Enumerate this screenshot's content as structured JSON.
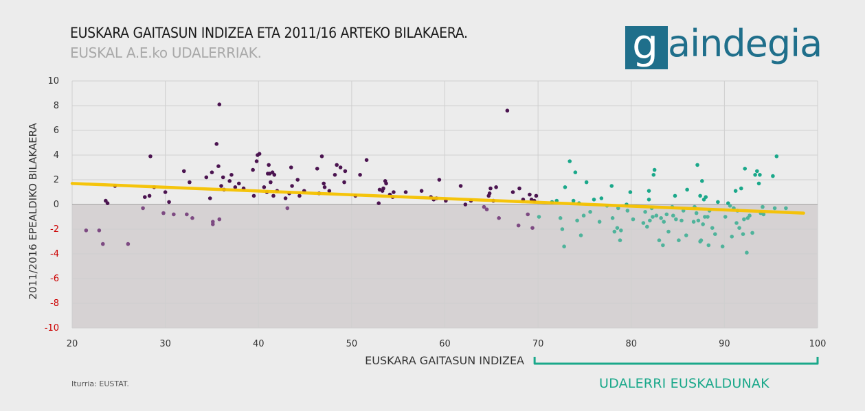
{
  "header": {
    "title": "EUSKARA GAITASUN INDIZEA ETA 2011/16 ARTEKO BILAKAERA.",
    "subtitle": "EUSKAL A.E.ko UDALERRIAK."
  },
  "logo": {
    "letter": "g",
    "rest": "aindegia",
    "color": "#1f6f8b"
  },
  "footer": {
    "source": "Iturria: EUSTAT.",
    "highlight_label": "UDALERRI EUSKALDUNAK"
  },
  "colors": {
    "purple_points": "#4b1450",
    "purple_light_points": "#7d4a82",
    "teal_points": "#1aa88a",
    "teal_light_points": "#4fb39b",
    "trend": "#f6c200",
    "negative_zone": "#d6d2d3",
    "background": "#ececec",
    "negative_tick": "#cc0000"
  },
  "chart_data": {
    "type": "scatter",
    "title": "EUSKARA GAITASUN INDIZEA ETA 2011/16 ARTEKO BILAKAERA.",
    "xlabel": "EUSKARA GAITASUN INDIZEA",
    "ylabel": "2011/2016 EPEALDIKO BILAKAERA",
    "xlim": [
      20,
      100
    ],
    "ylim": [
      -10,
      10
    ],
    "xticks": [
      20,
      30,
      40,
      50,
      60,
      70,
      80,
      90,
      100
    ],
    "yticks": [
      10,
      8,
      6,
      4,
      2,
      0,
      -2,
      -4,
      -6,
      -8,
      -10
    ],
    "grid": true,
    "negative_zone": true,
    "highlight_range": [
      70,
      100
    ],
    "trendline": {
      "x": [
        20,
        98.5
      ],
      "y": [
        1.7,
        -0.7
      ]
    },
    "points": [
      [
        21.5,
        -2.1
      ],
      [
        22.9,
        -2.1
      ],
      [
        23.3,
        -3.2
      ],
      [
        23.6,
        0.3
      ],
      [
        23.8,
        0.1
      ],
      [
        24.6,
        1.5
      ],
      [
        26.0,
        -3.2
      ],
      [
        27.6,
        -0.3
      ],
      [
        27.8,
        0.6
      ],
      [
        28.3,
        0.7
      ],
      [
        28.4,
        3.9
      ],
      [
        28.8,
        1.4
      ],
      [
        29.8,
        -0.7
      ],
      [
        30.0,
        1.0
      ],
      [
        30.4,
        0.2
      ],
      [
        30.9,
        -0.8
      ],
      [
        32.0,
        2.7
      ],
      [
        32.3,
        -0.8
      ],
      [
        32.6,
        1.8
      ],
      [
        32.9,
        -1.1
      ],
      [
        34.4,
        2.2
      ],
      [
        34.8,
        0.5
      ],
      [
        35.0,
        2.6
      ],
      [
        35.1,
        -1.6
      ],
      [
        35.1,
        -1.4
      ],
      [
        35.5,
        4.9
      ],
      [
        35.7,
        3.1
      ],
      [
        35.8,
        -1.2
      ],
      [
        35.8,
        8.1
      ],
      [
        36.0,
        1.5
      ],
      [
        36.2,
        2.2
      ],
      [
        36.3,
        1.2
      ],
      [
        36.9,
        1.9
      ],
      [
        37.1,
        2.4
      ],
      [
        37.5,
        1.4
      ],
      [
        37.9,
        1.7
      ],
      [
        38.4,
        1.3
      ],
      [
        39.4,
        2.8
      ],
      [
        39.5,
        0.7
      ],
      [
        39.8,
        3.5
      ],
      [
        39.9,
        4.0
      ],
      [
        40.1,
        4.1
      ],
      [
        40.6,
        1.4
      ],
      [
        40.9,
        1.0
      ],
      [
        41.0,
        2.5
      ],
      [
        41.1,
        3.2
      ],
      [
        41.2,
        2.5
      ],
      [
        41.3,
        1.8
      ],
      [
        41.5,
        2.6
      ],
      [
        41.6,
        0.7
      ],
      [
        41.7,
        2.4
      ],
      [
        42.0,
        1.1
      ],
      [
        42.9,
        0.5
      ],
      [
        43.1,
        -0.3
      ],
      [
        43.3,
        0.9
      ],
      [
        43.5,
        3.0
      ],
      [
        43.6,
        1.5
      ],
      [
        44.2,
        2.0
      ],
      [
        44.4,
        0.7
      ],
      [
        44.9,
        1.1
      ],
      [
        46.3,
        2.9
      ],
      [
        46.5,
        0.9
      ],
      [
        46.8,
        3.9
      ],
      [
        47.0,
        1.7
      ],
      [
        47.1,
        1.4
      ],
      [
        47.6,
        1.1
      ],
      [
        48.2,
        2.4
      ],
      [
        48.4,
        3.2
      ],
      [
        48.8,
        3.0
      ],
      [
        49.2,
        1.8
      ],
      [
        49.3,
        2.7
      ],
      [
        50.4,
        0.7
      ],
      [
        50.9,
        2.4
      ],
      [
        51.6,
        3.6
      ],
      [
        52.9,
        0.1
      ],
      [
        53.0,
        1.2
      ],
      [
        53.3,
        1.1
      ],
      [
        53.4,
        1.3
      ],
      [
        53.6,
        1.9
      ],
      [
        53.7,
        1.7
      ],
      [
        54.1,
        0.8
      ],
      [
        54.4,
        0.6
      ],
      [
        54.5,
        1.0
      ],
      [
        55.8,
        1.0
      ],
      [
        57.5,
        1.1
      ],
      [
        58.5,
        0.6
      ],
      [
        58.8,
        0.4
      ],
      [
        59.1,
        0.5
      ],
      [
        59.4,
        2.0
      ],
      [
        60.1,
        0.3
      ],
      [
        61.7,
        1.5
      ],
      [
        62.2,
        0.0
      ],
      [
        62.8,
        0.3
      ],
      [
        64.2,
        -0.2
      ],
      [
        64.5,
        -0.4
      ],
      [
        64.7,
        0.7
      ],
      [
        64.8,
        0.9
      ],
      [
        64.9,
        1.3
      ],
      [
        65.2,
        0.3
      ],
      [
        65.5,
        1.4
      ],
      [
        65.8,
        -1.1
      ],
      [
        66.7,
        7.6
      ],
      [
        67.3,
        1.0
      ],
      [
        67.9,
        -1.7
      ],
      [
        68.0,
        1.3
      ],
      [
        68.4,
        0.4
      ],
      [
        68.9,
        -0.8
      ],
      [
        69.1,
        0.8
      ],
      [
        69.3,
        0.4
      ],
      [
        69.6,
        0.3
      ],
      [
        69.4,
        -1.9
      ],
      [
        69.8,
        0.7
      ],
      [
        70.1,
        -1.0
      ],
      [
        71.5,
        0.2
      ],
      [
        72.0,
        0.3
      ],
      [
        72.4,
        -1.1
      ],
      [
        72.6,
        -2.0
      ],
      [
        72.8,
        -3.4
      ],
      [
        72.9,
        1.4
      ],
      [
        73.4,
        3.5
      ],
      [
        73.8,
        0.3
      ],
      [
        74.0,
        2.6
      ],
      [
        74.2,
        -1.3
      ],
      [
        74.4,
        0.1
      ],
      [
        74.6,
        -2.5
      ],
      [
        74.9,
        -0.9
      ],
      [
        75.2,
        1.8
      ],
      [
        75.6,
        -0.6
      ],
      [
        76.0,
        0.4
      ],
      [
        76.6,
        -1.4
      ],
      [
        76.8,
        0.5
      ],
      [
        77.4,
        -0.1
      ],
      [
        77.9,
        1.5
      ],
      [
        78.0,
        -1.1
      ],
      [
        78.2,
        -2.2
      ],
      [
        78.5,
        -1.9
      ],
      [
        78.6,
        -0.3
      ],
      [
        78.8,
        -2.9
      ],
      [
        78.9,
        -2.1
      ],
      [
        79.5,
        0.0
      ],
      [
        79.6,
        -0.5
      ],
      [
        79.9,
        1.0
      ],
      [
        80.2,
        -1.2
      ],
      [
        81.3,
        -1.5
      ],
      [
        81.5,
        -0.6
      ],
      [
        81.7,
        -1.8
      ],
      [
        81.9,
        0.4
      ],
      [
        81.9,
        1.1
      ],
      [
        82.0,
        -1.3
      ],
      [
        82.2,
        -0.3
      ],
      [
        82.3,
        -1.0
      ],
      [
        82.4,
        2.4
      ],
      [
        82.5,
        2.8
      ],
      [
        82.7,
        -0.9
      ],
      [
        83.0,
        -2.9
      ],
      [
        83.2,
        -1.1
      ],
      [
        83.4,
        -3.3
      ],
      [
        83.5,
        -1.4
      ],
      [
        83.8,
        -0.8
      ],
      [
        84.0,
        -2.2
      ],
      [
        84.4,
        -0.2
      ],
      [
        84.5,
        -0.9
      ],
      [
        84.7,
        0.7
      ],
      [
        84.8,
        -1.2
      ],
      [
        85.1,
        -2.9
      ],
      [
        85.4,
        -1.3
      ],
      [
        85.6,
        -0.5
      ],
      [
        85.9,
        -2.5
      ],
      [
        86.0,
        1.2
      ],
      [
        86.7,
        -1.4
      ],
      [
        86.8,
        -0.2
      ],
      [
        87.0,
        -0.7
      ],
      [
        87.1,
        3.2
      ],
      [
        87.2,
        -1.3
      ],
      [
        87.4,
        -3.0
      ],
      [
        87.4,
        0.7
      ],
      [
        87.5,
        -2.9
      ],
      [
        87.6,
        1.9
      ],
      [
        87.7,
        -1.6
      ],
      [
        87.8,
        0.4
      ],
      [
        87.9,
        -1.0
      ],
      [
        88.0,
        0.6
      ],
      [
        88.2,
        -1.0
      ],
      [
        88.3,
        -3.3
      ],
      [
        88.4,
        -0.5
      ],
      [
        88.7,
        -1.9
      ],
      [
        89.0,
        -2.4
      ],
      [
        89.3,
        0.2
      ],
      [
        89.8,
        -3.4
      ],
      [
        90.1,
        -1.0
      ],
      [
        90.4,
        0.1
      ],
      [
        90.6,
        -0.1
      ],
      [
        90.8,
        -2.6
      ],
      [
        91.0,
        -0.3
      ],
      [
        91.2,
        1.1
      ],
      [
        91.3,
        -1.5
      ],
      [
        91.4,
        -0.5
      ],
      [
        91.6,
        -1.9
      ],
      [
        91.8,
        1.3
      ],
      [
        92.0,
        -2.4
      ],
      [
        92.1,
        -1.2
      ],
      [
        92.2,
        2.9
      ],
      [
        92.4,
        -3.9
      ],
      [
        92.5,
        -1.1
      ],
      [
        92.7,
        -0.9
      ],
      [
        93.0,
        -2.3
      ],
      [
        93.3,
        2.4
      ],
      [
        93.5,
        2.7
      ],
      [
        93.7,
        1.7
      ],
      [
        93.8,
        2.4
      ],
      [
        93.9,
        -0.7
      ],
      [
        94.1,
        -0.2
      ],
      [
        94.2,
        -0.8
      ],
      [
        95.2,
        2.3
      ],
      [
        95.4,
        -0.3
      ],
      [
        95.6,
        3.9
      ],
      [
        96.6,
        -0.3
      ]
    ]
  }
}
